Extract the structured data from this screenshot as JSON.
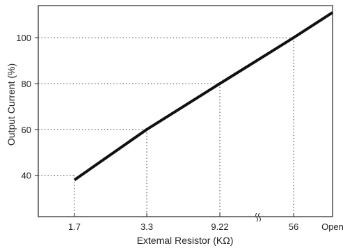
{
  "chart_data": {
    "type": "line",
    "title": "",
    "xlabel": "Extemal Resistor (KΩ)",
    "ylabel": "Output Current (%)",
    "x_axis_scale": "categorical (non-linear)",
    "x_ticks": [
      "1.7",
      "3.3",
      "9.22",
      "56",
      "Open"
    ],
    "x_axis_break": "between 9.22 and 56",
    "y_ticks": [
      40,
      60,
      80,
      100
    ],
    "ylim": [
      22,
      114
    ],
    "grid": "dotted reference lines at marked points",
    "series": [
      {
        "name": "",
        "points": [
          {
            "x": "1.7",
            "y": 38
          },
          {
            "x": "3.3",
            "y": 60
          },
          {
            "x": "9.22",
            "y": 80
          },
          {
            "x": "56",
            "y": 100
          },
          {
            "x": "Open",
            "y": 111
          }
        ]
      }
    ],
    "reference_points": [
      {
        "x": "1.7",
        "y": 40
      },
      {
        "x": "3.3",
        "y": 60
      },
      {
        "x": "9.22",
        "y": 80
      },
      {
        "x": "56",
        "y": 100
      }
    ],
    "line_color": "#111111",
    "ref_line_color": "#444444"
  }
}
